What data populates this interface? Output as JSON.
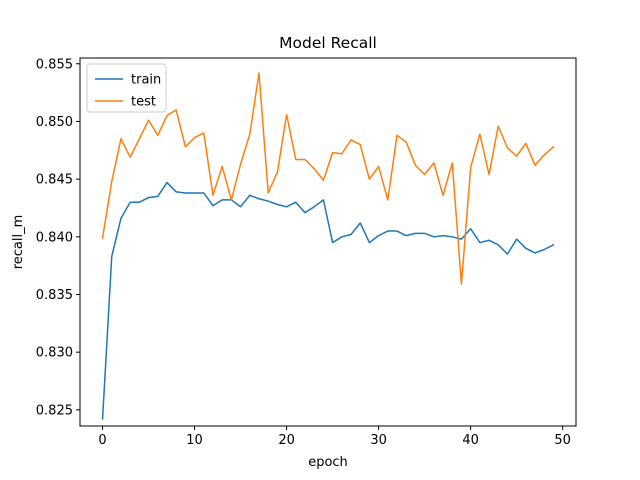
{
  "chart_data": {
    "type": "line",
    "title": "Model Recall",
    "xlabel": "epoch",
    "ylabel": "recall_m",
    "xlim": [
      -2.45,
      51.45
    ],
    "ylim": [
      0.8236,
      0.8555
    ],
    "xticks": [
      0,
      10,
      20,
      30,
      40,
      50
    ],
    "yticks": [
      0.825,
      0.83,
      0.835,
      0.84,
      0.845,
      0.85,
      0.855
    ],
    "ytick_labels": [
      "0.825",
      "0.830",
      "0.835",
      "0.840",
      "0.845",
      "0.850",
      "0.855"
    ],
    "grid": false,
    "legend_position": "upper-left",
    "x": [
      0,
      1,
      2,
      3,
      4,
      5,
      6,
      7,
      8,
      9,
      10,
      11,
      12,
      13,
      14,
      15,
      16,
      17,
      18,
      19,
      20,
      21,
      22,
      23,
      24,
      25,
      26,
      27,
      28,
      29,
      30,
      31,
      32,
      33,
      34,
      35,
      36,
      37,
      38,
      39,
      40,
      41,
      42,
      43,
      44,
      45,
      46,
      47,
      48,
      49
    ],
    "series": [
      {
        "name": "train",
        "color": "#1f77b4",
        "values": [
          0.8242,
          0.8383,
          0.8416,
          0.843,
          0.843,
          0.8434,
          0.8435,
          0.8447,
          0.8439,
          0.8438,
          0.8438,
          0.8438,
          0.8427,
          0.8432,
          0.8432,
          0.8426,
          0.8436,
          0.8433,
          0.8431,
          0.8428,
          0.8426,
          0.843,
          0.8421,
          0.8426,
          0.8432,
          0.8395,
          0.84,
          0.8402,
          0.8412,
          0.8395,
          0.8401,
          0.8405,
          0.8405,
          0.8401,
          0.8403,
          0.8403,
          0.84,
          0.8401,
          0.84,
          0.8398,
          0.8407,
          0.8395,
          0.8397,
          0.8393,
          0.8385,
          0.8398,
          0.839,
          0.8386,
          0.8389,
          0.8393
        ]
      },
      {
        "name": "test",
        "color": "#ff7f0e",
        "values": [
          0.8399,
          0.8448,
          0.8485,
          0.8469,
          0.8485,
          0.8501,
          0.8488,
          0.8505,
          0.851,
          0.8478,
          0.8486,
          0.849,
          0.8436,
          0.8461,
          0.8432,
          0.8463,
          0.8489,
          0.8542,
          0.8438,
          0.8456,
          0.8506,
          0.8467,
          0.8467,
          0.8459,
          0.8449,
          0.8473,
          0.8472,
          0.8484,
          0.848,
          0.845,
          0.8461,
          0.8432,
          0.8488,
          0.8482,
          0.8462,
          0.8454,
          0.8464,
          0.8436,
          0.8464,
          0.8359,
          0.846,
          0.8489,
          0.8454,
          0.8496,
          0.8477,
          0.847,
          0.8481,
          0.8462,
          0.8471,
          0.8478
        ]
      }
    ]
  }
}
